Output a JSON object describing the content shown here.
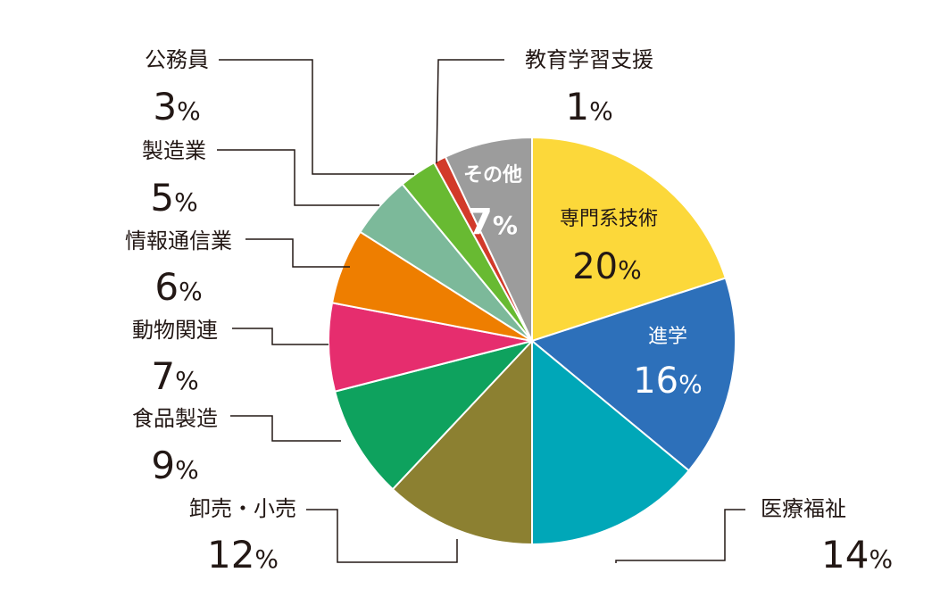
{
  "chart_data": {
    "type": "pie",
    "start": "12 o'clock",
    "direction": "clockwise",
    "slices": [
      {
        "label": "専門系技術",
        "value": 20,
        "value_text": "20",
        "unit": "%",
        "color": "#FCD83A",
        "label_position": "inside",
        "text_color": "#231815"
      },
      {
        "label": "進学",
        "value": 16,
        "value_text": "16",
        "unit": "%",
        "color": "#2D70BA",
        "label_position": "inside",
        "text_color": "#ffffff"
      },
      {
        "label": "医療福祉",
        "value": 14,
        "value_text": "14",
        "unit": "%",
        "color": "#00A7B8",
        "label_position": "outside",
        "text_color": "#231815"
      },
      {
        "label": "卸売・小売",
        "value": 12,
        "value_text": "12",
        "unit": "%",
        "color": "#8C8031",
        "label_position": "outside",
        "text_color": "#231815"
      },
      {
        "label": "食品製造",
        "value": 9,
        "value_text": "9",
        "unit": "%",
        "color": "#0EA25E",
        "label_position": "outside",
        "text_color": "#231815"
      },
      {
        "label": "動物関連",
        "value": 7,
        "value_text": "7",
        "unit": "%",
        "color": "#E62D6E",
        "label_position": "outside",
        "text_color": "#231815"
      },
      {
        "label": "情報通信業",
        "value": 6,
        "value_text": "6",
        "unit": "%",
        "color": "#EE7E00",
        "label_position": "outside",
        "text_color": "#231815"
      },
      {
        "label": "製造業",
        "value": 5,
        "value_text": "5",
        "unit": "%",
        "color": "#7CB99A",
        "label_position": "outside",
        "text_color": "#231815"
      },
      {
        "label": "公務員",
        "value": 3,
        "value_text": "3",
        "unit": "%",
        "color": "#68BA32",
        "label_position": "outside",
        "text_color": "#231815"
      },
      {
        "label": "教育学習支援",
        "value": 1,
        "value_text": "1",
        "unit": "%",
        "color": "#D23A2A",
        "label_position": "outside",
        "text_color": "#231815"
      },
      {
        "label": "その他",
        "value": 7,
        "value_text": "7",
        "unit": "%",
        "color": "#9C9C9C",
        "label_position": "inside",
        "text_color": "#ffffff"
      }
    ],
    "legend": "none"
  }
}
